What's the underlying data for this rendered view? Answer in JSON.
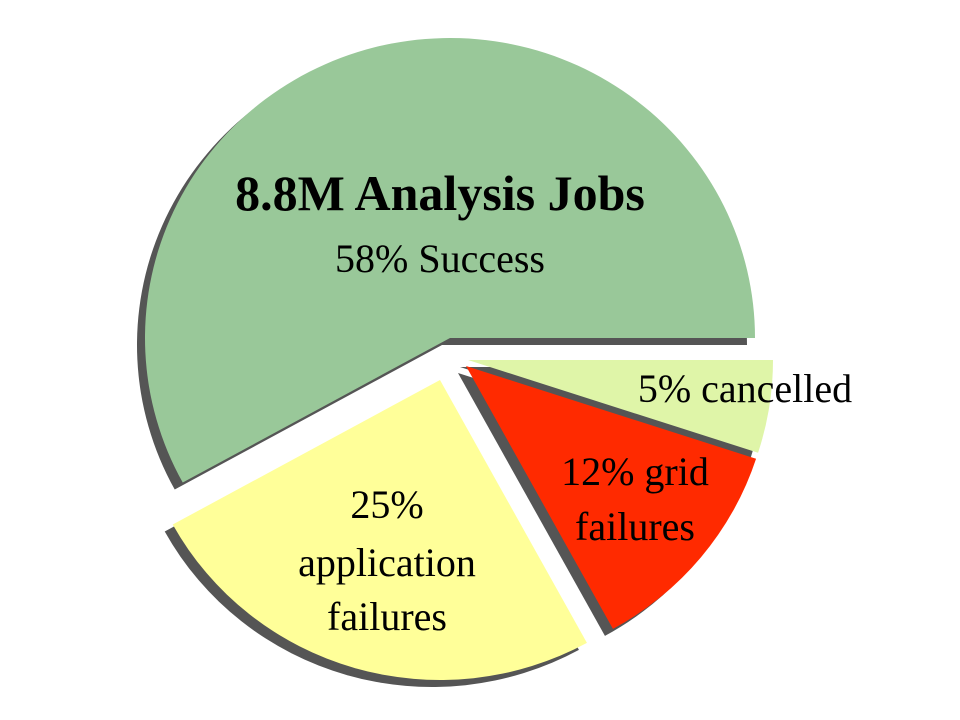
{
  "chart_data": {
    "type": "pie",
    "title": "8.8M Analysis Jobs",
    "slices": [
      {
        "label": "58% Success",
        "value": 58,
        "color": "#99c899"
      },
      {
        "label": "5% cancelled",
        "value": 5,
        "color": "#dff5a8"
      },
      {
        "label": "12% grid failures",
        "value": 12,
        "color": "#ff2a00"
      },
      {
        "label": "25% application failures",
        "value": 25,
        "color": "#ffff99"
      }
    ]
  },
  "labels": {
    "title": "8.8M Analysis Jobs",
    "success": "58% Success",
    "cancelled": "5% cancelled",
    "grid_line1": "12% grid",
    "grid_line2": "failures",
    "app_line1": "25%",
    "app_line2": "application",
    "app_line3": "failures"
  }
}
